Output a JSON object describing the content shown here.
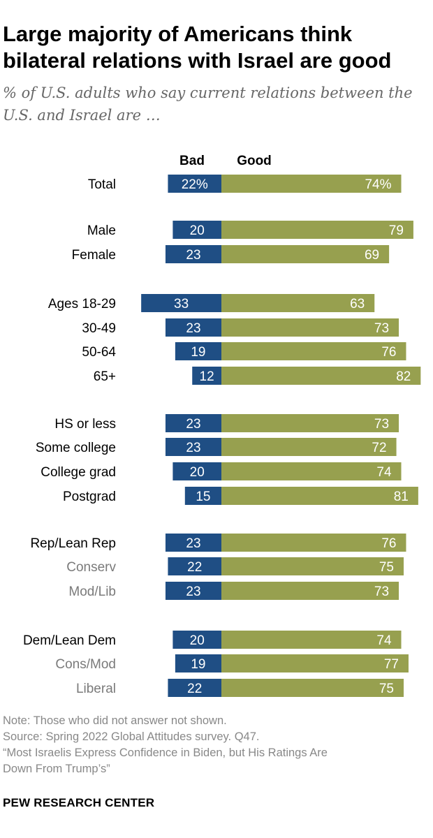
{
  "title_line1": "Large majority of Americans think",
  "title_line2": "bilateral relations with Israel are good",
  "subtitle_line1": "% of U.S. adults who say current relations between the",
  "subtitle_line2": "U.S. and Israel are …",
  "colors": {
    "bad": "#1f4e84",
    "good": "#97a04f",
    "subgroup_label": "#7a7a7a"
  },
  "chart_data": {
    "type": "bar",
    "orientation": "horizontal-diverging",
    "series": [
      {
        "name": "Bad",
        "values": [
          22,
          20,
          23,
          33,
          23,
          19,
          12,
          23,
          23,
          20,
          15,
          23,
          22,
          23,
          20,
          19,
          22
        ]
      },
      {
        "name": "Good",
        "values": [
          74,
          79,
          69,
          63,
          73,
          76,
          82,
          73,
          72,
          74,
          81,
          76,
          75,
          73,
          74,
          77,
          75
        ]
      }
    ],
    "categories": [
      "Total",
      "Male",
      "Female",
      "Ages 18-29",
      "30-49",
      "50-64",
      "65+",
      "HS or less",
      "Some college",
      "College grad",
      "Postgrad",
      "Rep/Lean Rep",
      "Conserv",
      "Mod/Lib",
      "Dem/Lean Dem",
      "Cons/Mod",
      "Liberal"
    ],
    "subgroup": [
      false,
      false,
      false,
      false,
      false,
      false,
      false,
      false,
      false,
      false,
      false,
      false,
      true,
      true,
      false,
      true,
      true
    ],
    "value_labels_bad": [
      "22%",
      "20",
      "23",
      "33",
      "23",
      "19",
      "12",
      "23",
      "23",
      "20",
      "15",
      "23",
      "22",
      "23",
      "20",
      "19",
      "22"
    ],
    "value_labels_good": [
      "74%",
      "79",
      "69",
      "63",
      "73",
      "76",
      "82",
      "73",
      "72",
      "74",
      "81",
      "76",
      "75",
      "73",
      "74",
      "77",
      "75"
    ]
  },
  "notes": [
    "Note: Those who did not answer not shown.",
    "Source: Spring 2022 Global Attitudes survey. Q47.",
    "“Most Israelis Express Confidence in Biden, but His Ratings Are",
    "Down From Trump’s”"
  ],
  "source_brand": "PEW RESEARCH CENTER"
}
